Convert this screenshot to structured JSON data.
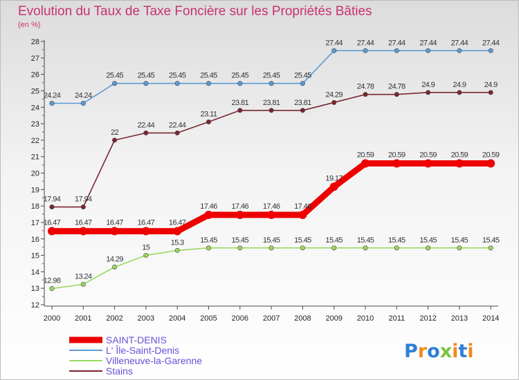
{
  "chart_data": {
    "type": "line",
    "title": "Evolution du Taux de Taxe Foncière sur les Propriétés Bâties",
    "subtitle": "(en %)",
    "xlabel": "",
    "ylabel": "",
    "ylim": [
      12,
      28
    ],
    "yticks": [
      "12",
      "13",
      "14",
      "15",
      "16",
      "17",
      "18",
      "19",
      "20",
      "21",
      "22",
      "23",
      "24",
      "25",
      "26",
      "27",
      "28"
    ],
    "categories": [
      "2000",
      "2001",
      "2002",
      "2003",
      "2004",
      "2005",
      "2006",
      "2007",
      "2008",
      "2009",
      "2010",
      "2011",
      "2012",
      "2013",
      "2014"
    ],
    "series": [
      {
        "name": "L' Île-Saint-Denis",
        "color": "#5b9bd5",
        "values": [
          24.24,
          24.24,
          25.45,
          25.45,
          25.45,
          25.45,
          25.45,
          25.45,
          25.45,
          27.44,
          27.44,
          27.44,
          27.44,
          27.44,
          27.44
        ],
        "labels": [
          "24.24",
          "24.24",
          "25.45",
          "25.45",
          "25.45",
          "25.45",
          "25.45",
          "25.45",
          "25.45",
          "27.44",
          "27.44",
          "27.44",
          "27.44",
          "27.44",
          "27.44"
        ]
      },
      {
        "name": "Stains",
        "color": "#7a2530",
        "values": [
          17.94,
          17.94,
          22,
          22.44,
          22.44,
          23.11,
          23.81,
          23.81,
          23.81,
          24.29,
          24.78,
          24.78,
          24.9,
          24.9,
          24.9
        ],
        "labels": [
          "17.94",
          "17.94",
          "22",
          "22.44",
          "22.44",
          "23.11",
          "23.81",
          "23.81",
          "23.81",
          "24.29",
          "24.78",
          "24.78",
          "24.9",
          "24.9",
          "24.9"
        ]
      },
      {
        "name": "Villeneuve-la-Garenne",
        "color": "#9ad860",
        "values": [
          12.98,
          13.24,
          14.29,
          15,
          15.3,
          15.45,
          15.45,
          15.45,
          15.45,
          15.45,
          15.45,
          15.45,
          15.45,
          15.45,
          15.45
        ],
        "labels": [
          "12.98",
          "13.24",
          "14.29",
          "15",
          "15.3",
          "15.45",
          "15.45",
          "15.45",
          "15.45",
          "15.45",
          "15.45",
          "15.45",
          "15.45",
          "15.45",
          "15.45"
        ]
      },
      {
        "name": "SAINT-DENIS",
        "color": "#ee0000",
        "values": [
          16.47,
          16.47,
          16.47,
          16.47,
          16.47,
          17.46,
          17.46,
          17.46,
          17.46,
          19.17,
          20.59,
          20.59,
          20.59,
          20.59,
          20.59
        ],
        "labels": [
          "16.47",
          "16.47",
          "16.47",
          "16.47",
          "16.47",
          "17.46",
          "17.46",
          "17.46",
          "17.46",
          "19.17",
          "20.59",
          "20.59",
          "20.59",
          "20.59",
          "20.59"
        ]
      }
    ],
    "legend": [
      "SAINT-DENIS",
      "L' Île-Saint-Denis",
      "Villeneuve-la-Garenne",
      "Stains"
    ],
    "legend_colors": [
      "#ee0000",
      "#5b9bd5",
      "#9ad860",
      "#7a2530"
    ],
    "legend_position": "bottom-left",
    "grid": false
  },
  "branding": {
    "logo_text": "Proxiti"
  }
}
